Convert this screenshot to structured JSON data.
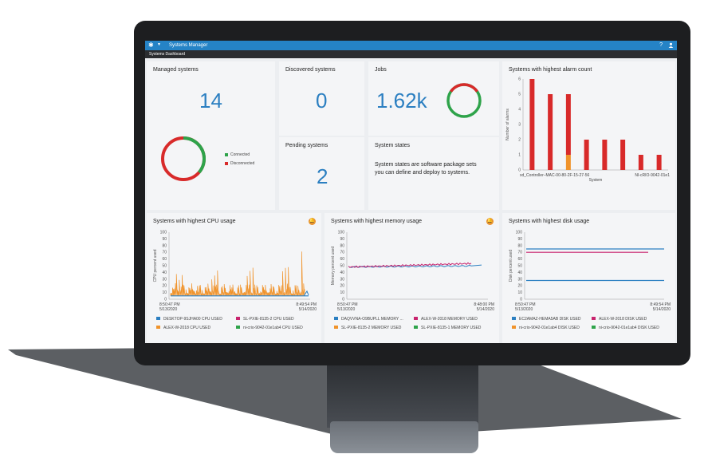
{
  "app": {
    "title": "Systems Manager",
    "tab": "Systems Dashboard",
    "help_icon": "?"
  },
  "managed": {
    "title": "Managed systems",
    "value": "14",
    "legend": [
      {
        "label": "Connected",
        "color": "#2ea34a"
      },
      {
        "label": "Disconnected",
        "color": "#d82a2a"
      }
    ]
  },
  "discovered": {
    "title": "Discovered systems",
    "value": "0"
  },
  "jobs": {
    "title": "Jobs",
    "value": "1.62k"
  },
  "pending": {
    "title": "Pending systems",
    "value": "2"
  },
  "states": {
    "title": "System states",
    "body": "System states are software package sets you can define and deploy to systems."
  },
  "alarm": {
    "title": "Systems with highest alarm count",
    "chart_data": {
      "type": "bar",
      "ylabel": "Number of alarms",
      "xlabel": "System",
      "ylim": [
        0,
        6
      ],
      "yticks": [
        "0",
        "1",
        "2",
        "3",
        "4",
        "5",
        "6"
      ],
      "xticklabels": [
        "xd_Controller–MAC-00-80-2F-15-27-56",
        "NI-cRIO-9042-01e1"
      ],
      "series": [
        {
          "color": "#d82a2a",
          "values": [
            6,
            5,
            5,
            2,
            2,
            2,
            1,
            1
          ]
        },
        {
          "color": "#f0932b",
          "values": [
            0,
            0,
            1,
            0,
            0,
            0,
            0,
            0
          ]
        }
      ]
    }
  },
  "cpu": {
    "title": "Systems with highest CPU usage",
    "ylabel": "CPU percent used",
    "chart_data": {
      "type": "line",
      "ylim": [
        0,
        100
      ],
      "yticks": [
        "0",
        "10",
        "20",
        "30",
        "40",
        "50",
        "60",
        "70",
        "80",
        "90",
        "100"
      ],
      "xlabels": [
        {
          "t": "8:50:47 PM",
          "d": "5/13/2020"
        },
        {
          "t": "8:49:54 PM",
          "d": "5/14/2020"
        }
      ]
    },
    "legend": [
      {
        "label": "DESKTOP-9SJHA00 CPU USED",
        "color": "#2b7fc1"
      },
      {
        "label": "SL-PXIE-8135-2 CPU USED",
        "color": "#c8246e"
      },
      {
        "label": "ALEX-W-2018 CPU USED",
        "color": "#f0932b"
      },
      {
        "label": "ni-crio-9042-01e1ab4 CPU USED",
        "color": "#2ea34a"
      }
    ]
  },
  "memory": {
    "title": "Systems with highest memory usage",
    "ylabel": "Memory percent used",
    "chart_data": {
      "type": "line",
      "ylim": [
        0,
        100
      ],
      "yticks": [
        "0",
        "10",
        "20",
        "30",
        "40",
        "50",
        "60",
        "70",
        "80",
        "90",
        "100"
      ],
      "xlabels": [
        {
          "t": "8:50:47 PM",
          "d": "5/13/2020"
        },
        {
          "t": "8:48:00 PM",
          "d": "5/14/2020"
        }
      ]
    },
    "legend": [
      {
        "label": "DAQVVNA-O9BUPLL MEMORY ...",
        "color": "#2b7fc1"
      },
      {
        "label": "ALEX-W-2018 MEMORY USED",
        "color": "#c8246e"
      },
      {
        "label": "SL-PXIE-8135-2 MEMORY USED",
        "color": "#f0932b"
      },
      {
        "label": "SL-PXIE-8135-1 MEMORY USED",
        "color": "#2ea34a"
      }
    ]
  },
  "disk": {
    "title": "Systems with highest disk usage",
    "ylabel": "Disk percent used",
    "chart_data": {
      "type": "line",
      "ylim": [
        0,
        100
      ],
      "yticks": [
        "0",
        "10",
        "20",
        "30",
        "40",
        "50",
        "60",
        "70",
        "80",
        "90",
        "100"
      ],
      "xlabels": [
        {
          "t": "8:50:47 PM",
          "d": "5/13/2020"
        },
        {
          "t": "8:49:54 PM",
          "d": "5/14/2020"
        }
      ],
      "series": [
        {
          "name": "EC2AMAZ-HEMA5AB DISK USED",
          "color": "#2b7fc1",
          "values": [
            75,
            28
          ]
        },
        {
          "name": "ALEX-W-2018 DISK USED",
          "color": "#c8246e",
          "values": [
            70
          ]
        }
      ]
    },
    "legend": [
      {
        "label": "EC2AMAZ-HEMA5AB DISK USED",
        "color": "#2b7fc1"
      },
      {
        "label": "ALEX-W-2018 DISK USED",
        "color": "#c8246e"
      },
      {
        "label": "ni-crio-9042-01e1ab4 DISK USED",
        "color": "#f0932b"
      },
      {
        "label": "ni-crio-9042-01e1ab4 DISK USED",
        "color": "#2ea34a"
      }
    ]
  }
}
